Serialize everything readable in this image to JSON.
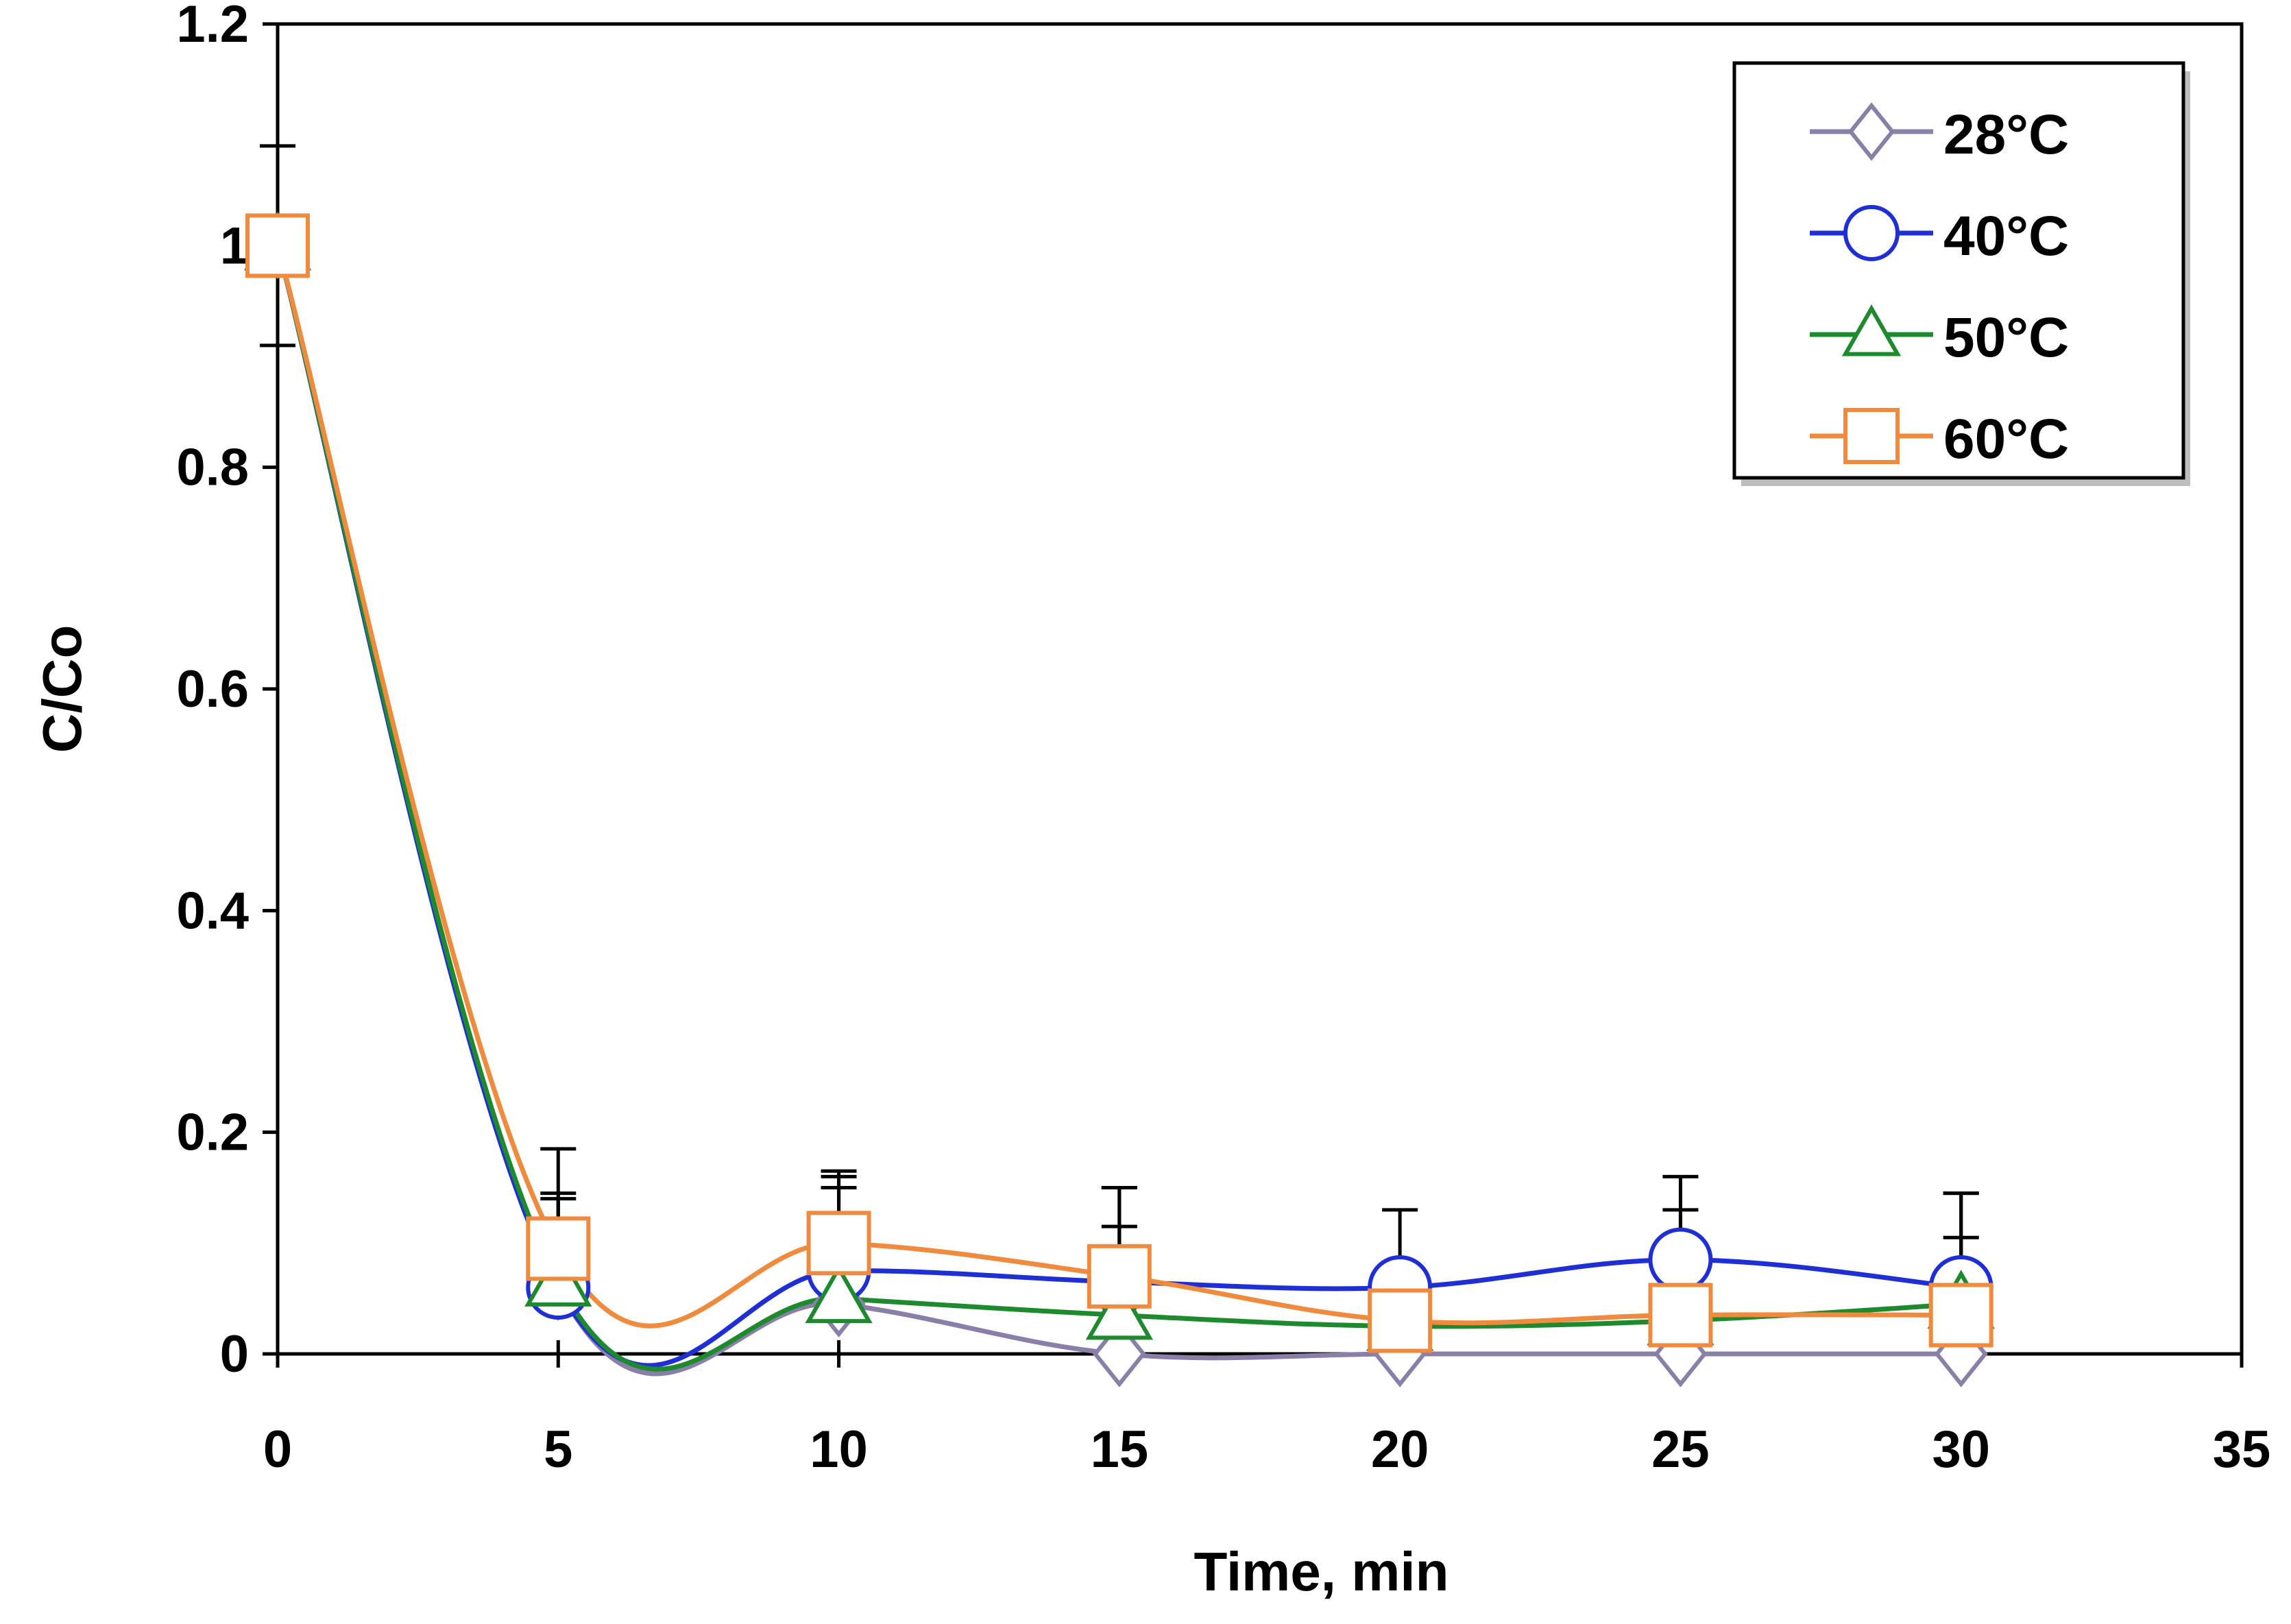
{
  "chart_data": {
    "type": "line",
    "title": "",
    "xlabel": "Time, min",
    "ylabel": "C/Co",
    "xlim": [
      0,
      35
    ],
    "ylim": [
      0,
      1.2
    ],
    "x_ticks": [
      0,
      5,
      10,
      15,
      20,
      25,
      30,
      35
    ],
    "y_ticks": [
      0,
      0.2,
      0.4,
      0.6,
      0.8,
      1,
      1.2
    ],
    "x_tick_labels": [
      "0",
      "5",
      "10",
      "15",
      "20",
      "25",
      "30",
      "35"
    ],
    "y_tick_labels": [
      "0",
      "0.2",
      "0.4",
      "0.6",
      "0.8",
      "1",
      "1.2"
    ],
    "grid": false,
    "legend_position": "top-right",
    "x": [
      0,
      5,
      10,
      15,
      20,
      25,
      30
    ],
    "series": [
      {
        "name": "28°C",
        "color": "#8a7fa8",
        "marker": "diamond",
        "values": [
          1.0,
          0.06,
          0.045,
          0.0,
          0.0,
          0.0,
          0.0
        ],
        "errors": [
          0.09,
          0.0,
          0.0,
          0.0,
          0.0,
          0.0,
          0.0
        ]
      },
      {
        "name": "40°C",
        "color": "#1f2fd6",
        "marker": "circle",
        "values": [
          1.0,
          0.06,
          0.075,
          0.065,
          0.06,
          0.085,
          0.06
        ],
        "errors": [
          0.0,
          0.08,
          0.085,
          0.085,
          0.07,
          0.075,
          0.085
        ]
      },
      {
        "name": "50°C",
        "color": "#1e8a2e",
        "marker": "triangle",
        "values": [
          1.0,
          0.065,
          0.05,
          0.035,
          0.025,
          0.03,
          0.045
        ],
        "errors": [
          0.0,
          0.08,
          0.1,
          0.08,
          0.0,
          0.1,
          0.1
        ]
      },
      {
        "name": "60°C",
        "color": "#f08a3c",
        "marker": "square",
        "values": [
          1.0,
          0.095,
          0.1,
          0.07,
          0.03,
          0.035,
          0.035
        ],
        "errors": [
          0.0,
          0.09,
          0.065,
          0.08,
          0.0,
          0.07,
          0.07
        ]
      }
    ]
  }
}
